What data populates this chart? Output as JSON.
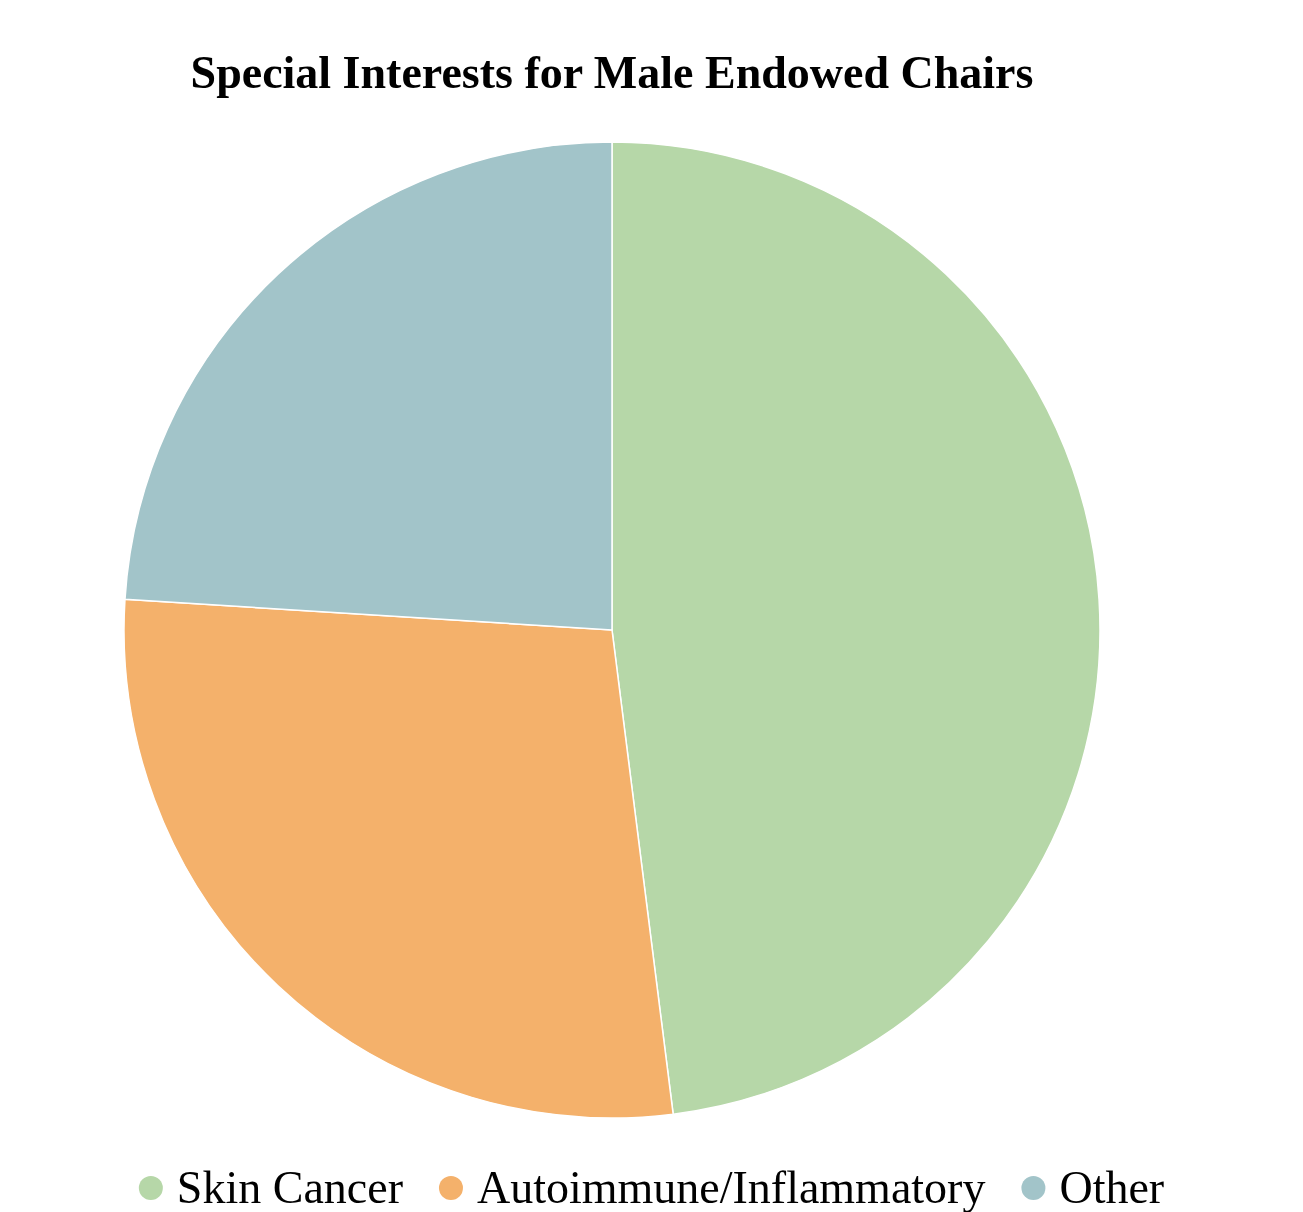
{
  "chart_data": {
    "type": "pie",
    "title": "Special Interests for Male Endowed Chairs",
    "categories": [
      "Skin Cancer",
      "Autoimmune/Inflammatory",
      "Other"
    ],
    "values": [
      48,
      28,
      24
    ],
    "colors": [
      "#b6d7a8",
      "#f4b16b",
      "#a2c4c9"
    ],
    "legend": "bottom"
  }
}
